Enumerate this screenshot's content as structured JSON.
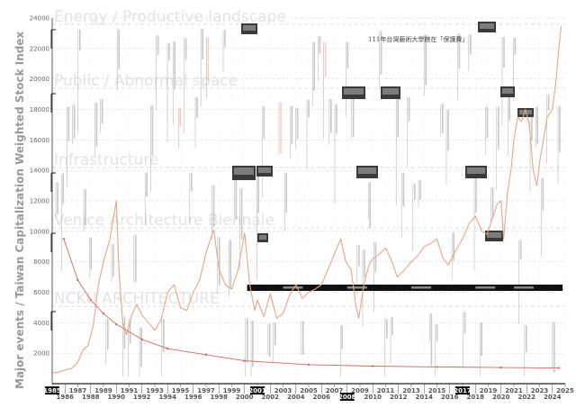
{
  "chart_data": {
    "type": "line",
    "ylabel": "Major events  /  Taiwan Capitalization Weighted Stock Index",
    "ylim": [
      0,
      24000
    ],
    "xlim": [
      1985,
      2025
    ],
    "yticks": [
      2000,
      4000,
      6000,
      8000,
      10000,
      12000,
      14000,
      16000,
      18000,
      20000,
      22000,
      24000
    ],
    "xticks": [
      1985,
      1986,
      1987,
      1988,
      1989,
      1990,
      1991,
      1992,
      1993,
      1994,
      1995,
      1996,
      1997,
      1998,
      1999,
      2000,
      2001,
      2002,
      2003,
      2004,
      2005,
      2006,
      2007,
      2008,
      2009,
      2010,
      2011,
      2012,
      2013,
      2014,
      2015,
      2016,
      2017,
      2018,
      2019,
      2020,
      2021,
      2022,
      2023,
      2024,
      2025
    ],
    "highlighted_years": [
      1985,
      2001,
      2008,
      2017
    ],
    "band_labels": [
      "Energy / Productive landscape",
      "Public / Abnormal space",
      "Infrastructure",
      "Venice Architecture Biennale",
      "NCKU ARCHITECTURE"
    ],
    "caption": "111年台灣藝術大學館在「保護費」",
    "grid": true,
    "series": [
      {
        "color": "#e8a58a",
        "x": [
          1985.0,
          1985.5,
          1986.0,
          1986.5,
          1987.0,
          1987.4,
          1987.8,
          1988.2,
          1988.6,
          1989.0,
          1989.5,
          1990.0,
          1990.2,
          1990.5,
          1990.8,
          1991.2,
          1991.6,
          1992.0,
          1992.5,
          1993.0,
          1993.5,
          1994.0,
          1994.5,
          1995.0,
          1995.5,
          1996.0,
          1996.5,
          1997.0,
          1997.6,
          1998.0,
          1998.5,
          1999.0,
          1999.5,
          2000.0,
          2000.4,
          2000.8,
          2001.0,
          2001.5,
          2002.0,
          2002.5,
          2003.0,
          2003.5,
          2004.0,
          2004.5,
          2005.0,
          2005.5,
          2006.0,
          2006.5,
          2007.0,
          2007.5,
          2007.9,
          2008.3,
          2008.7,
          2008.9,
          2009.3,
          2009.7,
          2010.0,
          2010.5,
          2011.0,
          2011.5,
          2011.9,
          2012.5,
          2013.0,
          2013.5,
          2014.0,
          2014.5,
          2015.0,
          2015.5,
          2015.9,
          2016.5,
          2017.0,
          2017.5,
          2018.0,
          2018.5,
          2018.9,
          2019.3,
          2019.7,
          2020.0,
          2020.2,
          2020.5,
          2020.8,
          2021.0,
          2021.3,
          2021.6,
          2021.9,
          2022.2,
          2022.5,
          2022.8,
          2023.0,
          2023.3,
          2023.6,
          2024.0,
          2024.3,
          2024.5,
          2024.7
        ],
        "y": [
          700,
          750,
          900,
          1000,
          1400,
          2200,
          2500,
          3800,
          6500,
          8000,
          9500,
          12000,
          7500,
          4000,
          3200,
          4500,
          5200,
          4500,
          4000,
          3500,
          4200,
          6000,
          6500,
          5000,
          4800,
          6000,
          6800,
          8600,
          10100,
          7500,
          6500,
          6200,
          7500,
          9900,
          6500,
          4800,
          5500,
          4400,
          5900,
          4300,
          4600,
          5800,
          6500,
          5600,
          6000,
          6200,
          6500,
          7500,
          8500,
          9500,
          8000,
          7500,
          5000,
          4300,
          6500,
          7800,
          8200,
          8500,
          8900,
          8000,
          7000,
          7500,
          8000,
          8400,
          9000,
          9200,
          9500,
          8200,
          7800,
          8800,
          9500,
          10500,
          11000,
          10000,
          9800,
          10800,
          11800,
          12000,
          9500,
          12500,
          14200,
          16000,
          17500,
          17200,
          18000,
          17000,
          14000,
          13000,
          14500,
          16000,
          17500,
          18000,
          20000,
          22000,
          23500
        ]
      },
      {
        "color": "#d06b5a",
        "x": [
          1985.9,
          1987.0,
          1988.0,
          1989.0,
          1990.0,
          1992.0,
          1994.0,
          1997.0,
          2000.0,
          2005.0,
          2010.0,
          2015.0,
          2020.0,
          2024.5
        ],
        "y": [
          9500,
          6800,
          5500,
          4600,
          3900,
          2900,
          2300,
          1900,
          1500,
          1250,
          1150,
          1100,
          1060,
          1030
        ]
      }
    ]
  }
}
